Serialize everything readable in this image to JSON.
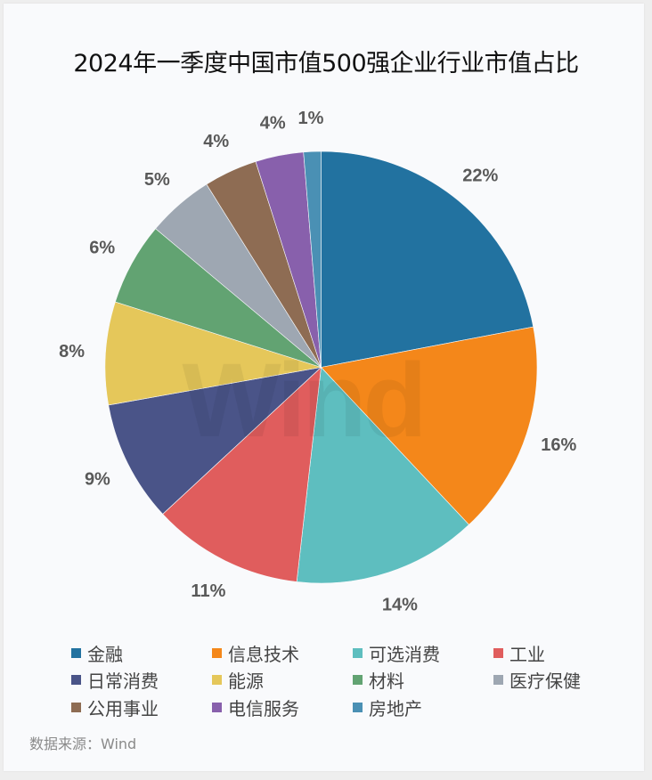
{
  "title": "2024年一季度中国市值500强企业行业市值占比",
  "source": "数据来源：Wind",
  "watermark": "Wind",
  "chart_data": {
    "type": "pie",
    "title": "2024年一季度中国市值500强企业行业市值占比",
    "start_angle": "12 o'clock, clockwise",
    "legend_position": "bottom",
    "categories": [
      "金融",
      "信息技术",
      "可选消费",
      "工业",
      "日常消费",
      "能源",
      "材料",
      "医疗保健",
      "公用事业",
      "电信服务",
      "房地产"
    ],
    "values": [
      22.0,
      16.0,
      13.8,
      11.3,
      9.1,
      7.7,
      6.2,
      5.0,
      4.0,
      3.6,
      1.3
    ],
    "labels": [
      "22%",
      "16%",
      "14%",
      "11%",
      "9%",
      "8%",
      "6%",
      "5%",
      "4%",
      "4%",
      "1%"
    ],
    "colors": [
      "#2272a0",
      "#f4871a",
      "#5ebebf",
      "#e05d5d",
      "#4a5488",
      "#e5c75a",
      "#62a372",
      "#9ea7b2",
      "#8e6c53",
      "#8860ac",
      "#4a90b4"
    ],
    "source": "数据来源：Wind"
  },
  "legend": [
    {
      "label": "金融",
      "color": "#2272a0"
    },
    {
      "label": "信息技术",
      "color": "#f4871a"
    },
    {
      "label": "可选消费",
      "color": "#5ebebf"
    },
    {
      "label": "工业",
      "color": "#e05d5d"
    },
    {
      "label": "日常消费",
      "color": "#4a5488"
    },
    {
      "label": "能源",
      "color": "#e5c75a"
    },
    {
      "label": "材料",
      "color": "#62a372"
    },
    {
      "label": "医疗保健",
      "color": "#9ea7b2"
    },
    {
      "label": "公用事业",
      "color": "#8e6c53"
    },
    {
      "label": "电信服务",
      "color": "#8860ac"
    },
    {
      "label": "房地产",
      "color": "#4a90b4"
    }
  ]
}
